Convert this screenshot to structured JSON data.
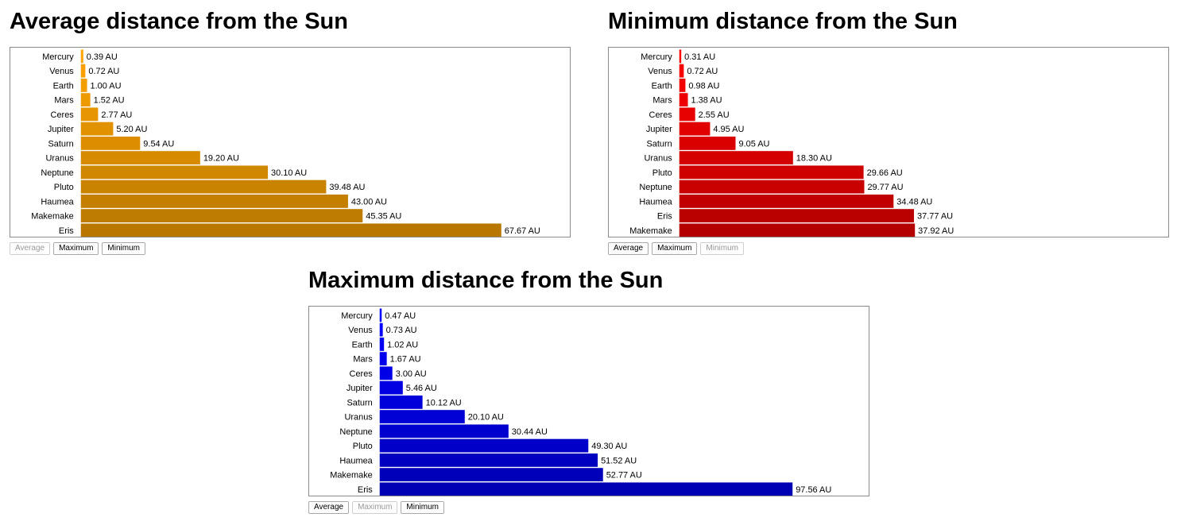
{
  "buttons": [
    "Average",
    "Maximum",
    "Minimum"
  ],
  "chart_data": [
    {
      "type": "bar",
      "orientation": "horizontal",
      "title": "Average distance from the Sun",
      "unit": "AU",
      "active_button": "Average",
      "colors": {
        "light": "#ffa400",
        "dark": "#b87800"
      },
      "categories": [
        "Mercury",
        "Venus",
        "Earth",
        "Mars",
        "Ceres",
        "Jupiter",
        "Saturn",
        "Uranus",
        "Neptune",
        "Pluto",
        "Haumea",
        "Makemake",
        "Eris"
      ],
      "values": [
        0.39,
        0.72,
        1.0,
        1.52,
        2.77,
        5.2,
        9.54,
        19.2,
        30.1,
        39.48,
        43.0,
        45.35,
        67.67
      ],
      "labels": [
        "0.39 AU",
        "0.72 AU",
        "1.00 AU",
        "1.52 AU",
        "2.77 AU",
        "5.20 AU",
        "9.54 AU",
        "19.20 AU",
        "30.10 AU",
        "39.48 AU",
        "43.00 AU",
        "45.35 AU",
        "67.67 AU"
      ]
    },
    {
      "type": "bar",
      "orientation": "horizontal",
      "title": "Minimum distance from the Sun",
      "unit": "AU",
      "active_button": "Minimum",
      "colors": {
        "light": "#ff0000",
        "dark": "#b50000"
      },
      "categories": [
        "Mercury",
        "Venus",
        "Earth",
        "Mars",
        "Ceres",
        "Jupiter",
        "Saturn",
        "Uranus",
        "Pluto",
        "Neptune",
        "Haumea",
        "Eris",
        "Makemake"
      ],
      "values": [
        0.31,
        0.72,
        0.98,
        1.38,
        2.55,
        4.95,
        9.05,
        18.3,
        29.66,
        29.77,
        34.48,
        37.77,
        37.92
      ],
      "labels": [
        "0.31 AU",
        "0.72 AU",
        "0.98 AU",
        "1.38 AU",
        "2.55 AU",
        "4.95 AU",
        "9.05 AU",
        "18.30 AU",
        "29.66 AU",
        "29.77 AU",
        "34.48 AU",
        "37.77 AU",
        "37.92 AU"
      ]
    },
    {
      "type": "bar",
      "orientation": "horizontal",
      "title": "Maximum distance from the Sun",
      "unit": "AU",
      "active_button": "Maximum",
      "colors": {
        "light": "#0000ff",
        "dark": "#0000b5"
      },
      "categories": [
        "Mercury",
        "Venus",
        "Earth",
        "Mars",
        "Ceres",
        "Jupiter",
        "Saturn",
        "Uranus",
        "Neptune",
        "Pluto",
        "Haumea",
        "Makemake",
        "Eris"
      ],
      "values": [
        0.47,
        0.73,
        1.02,
        1.67,
        3.0,
        5.46,
        10.12,
        20.1,
        30.44,
        49.3,
        51.52,
        52.77,
        97.56
      ],
      "labels": [
        "0.47 AU",
        "0.73 AU",
        "1.02 AU",
        "1.67 AU",
        "3.00 AU",
        "5.46 AU",
        "10.12 AU",
        "20.10 AU",
        "30.44 AU",
        "49.30 AU",
        "51.52 AU",
        "52.77 AU",
        "97.56 AU"
      ]
    }
  ]
}
